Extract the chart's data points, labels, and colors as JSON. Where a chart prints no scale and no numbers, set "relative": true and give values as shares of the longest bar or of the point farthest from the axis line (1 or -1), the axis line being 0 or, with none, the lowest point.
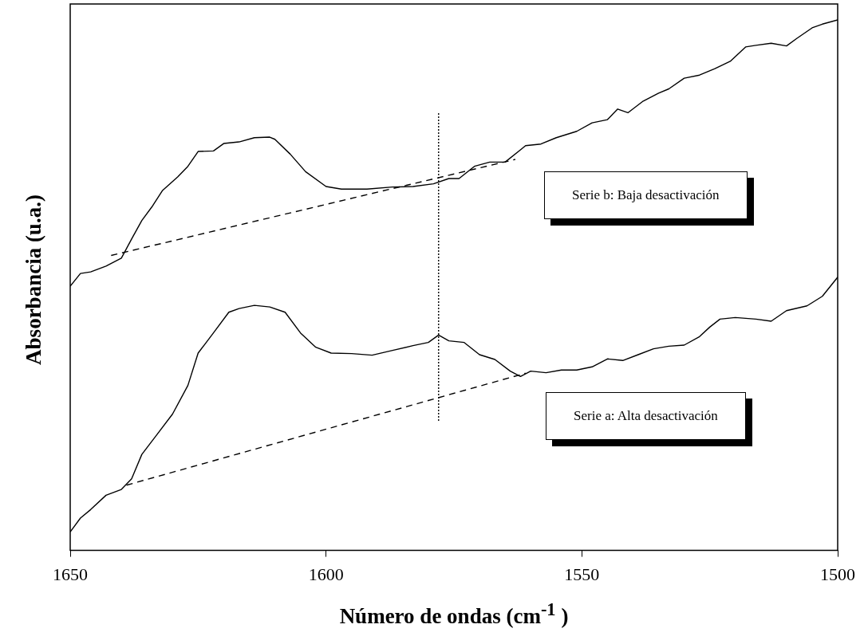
{
  "chart_data": {
    "type": "line",
    "xlabel": "Número de ondas (cm$^{-1}$ )",
    "ylabel": "Absorbancia (u.a.)",
    "relative": true,
    "xlim": [
      1650,
      1500
    ],
    "xticks": [
      1650,
      1600,
      1550,
      1500
    ],
    "grid": false,
    "legend": false,
    "marker": "none",
    "annotations": [
      "Serie b: Baja desactivación",
      "Serie a: Alta desactivación"
    ],
    "line_style": "solid",
    "series": [
      {
        "color": "#000000",
        "x": [
          1650,
          1648,
          1646,
          1643,
          1640,
          1638,
          1636,
          1634,
          1632,
          1629,
          1627,
          1625,
          1622,
          1620,
          1617,
          1614,
          1611,
          1610,
          1607,
          1604,
          1600,
          1597,
          1592,
          1587,
          1583,
          1579,
          1576,
          1574,
          1571,
          1568,
          1565,
          1562,
          1561,
          1558,
          1555,
          1551,
          1548,
          1545,
          1543,
          1541,
          1538,
          1535,
          1533,
          1530,
          1527,
          1524,
          1521,
          1518,
          1516,
          1513,
          1510,
          1508,
          1505,
          1503,
          1500
        ],
        "values": [
          0.498,
          0.522,
          0.525,
          0.536,
          0.551,
          0.587,
          0.622,
          0.648,
          0.678,
          0.704,
          0.724,
          0.752,
          0.753,
          0.767,
          0.77,
          0.778,
          0.779,
          0.775,
          0.747,
          0.714,
          0.686,
          0.681,
          0.681,
          0.685,
          0.686,
          0.691,
          0.701,
          0.701,
          0.724,
          0.732,
          0.732,
          0.755,
          0.763,
          0.766,
          0.778,
          0.79,
          0.806,
          0.812,
          0.832,
          0.825,
          0.847,
          0.862,
          0.87,
          0.89,
          0.896,
          0.908,
          0.922,
          0.949,
          0.952,
          0.956,
          0.951,
          0.965,
          0.985,
          0.992,
          1.0
        ]
      },
      {
        "color": "#000000",
        "x": [
          1650,
          1648,
          1646,
          1643,
          1640,
          1638,
          1636,
          1633,
          1630,
          1627,
          1625,
          1622,
          1619,
          1617,
          1614,
          1611,
          1608,
          1605,
          1602,
          1599,
          1595,
          1591,
          1587,
          1583,
          1580,
          1578,
          1576,
          1573,
          1570,
          1567,
          1564,
          1562,
          1560,
          1557,
          1554,
          1551,
          1548,
          1545,
          1542,
          1539,
          1536,
          1533,
          1530,
          1527,
          1525,
          1523,
          1520,
          1516,
          1513,
          1510,
          1506,
          1503,
          1500
        ],
        "values": [
          0.035,
          0.061,
          0.077,
          0.104,
          0.115,
          0.135,
          0.181,
          0.219,
          0.257,
          0.311,
          0.372,
          0.41,
          0.449,
          0.456,
          0.462,
          0.459,
          0.449,
          0.41,
          0.383,
          0.372,
          0.371,
          0.368,
          0.377,
          0.386,
          0.392,
          0.406,
          0.395,
          0.392,
          0.369,
          0.36,
          0.338,
          0.328,
          0.338,
          0.335,
          0.34,
          0.34,
          0.346,
          0.361,
          0.358,
          0.369,
          0.38,
          0.385,
          0.387,
          0.403,
          0.421,
          0.436,
          0.439,
          0.436,
          0.432,
          0.452,
          0.461,
          0.479,
          0.515
        ]
      },
      {
        "type": "line",
        "color": "#000000",
        "line_style": "dashed",
        "x": [
          1642,
          1563
        ],
        "values": [
          0.556,
          0.737
        ]
      },
      {
        "type": "line",
        "color": "#000000",
        "line_style": "dashed",
        "x": [
          1639,
          1561
        ],
        "values": [
          0.123,
          0.334
        ]
      },
      {
        "type": "line",
        "color": "#000000",
        "line_style": "dotted",
        "x": [
          1578,
          1578
        ],
        "values": [
          0.824,
          0.242
        ]
      }
    ]
  }
}
